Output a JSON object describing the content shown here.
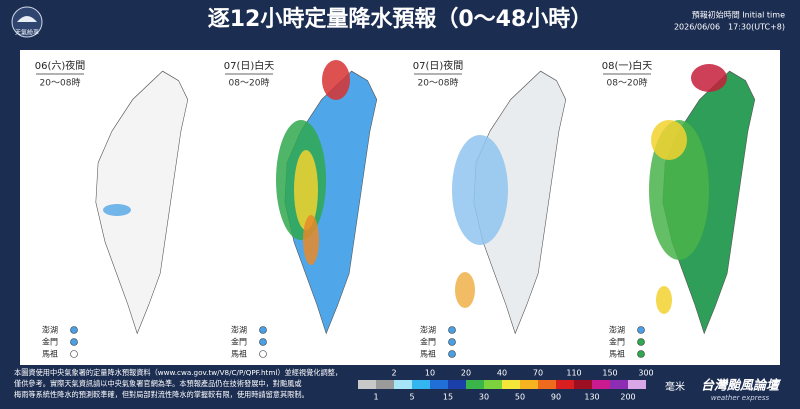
{
  "header": {
    "logo": "天氣紛享",
    "title": "逐12小時定量降水預報（0～48小時）",
    "init_label": "預報初始時間 Initial time",
    "init_time": "2026/06/06　17:30(UTC+8)"
  },
  "panels": [
    {
      "title": "06(六)夜間",
      "time": "20～08時",
      "islands": [
        "澎湖",
        "金門",
        "馬祖"
      ]
    },
    {
      "title": "07(日)白天",
      "time": "08～20時",
      "islands": [
        "澎湖",
        "金門",
        "馬祖"
      ]
    },
    {
      "title": "07(日)夜間",
      "time": "20～08時",
      "islands": [
        "澎湖",
        "金門",
        "馬祖"
      ]
    },
    {
      "title": "08(一)白天",
      "time": "08～20時",
      "islands": [
        "澎湖",
        "金門",
        "馬祖"
      ]
    }
  ],
  "footer": {
    "note": [
      "本圖資使用中央氣象署的定量降水預報資料（www.cwa.gov.tw/V8/C/P/QPF.html）並經視覺化調整，",
      "僅供參考。實際天氣資訊請以中央氣象署官網為準。本預報產品仍在技術發展中，對颱風或",
      "梅雨等系統性降水的預測較準確，但對局部對流性降水的掌握較有限，使用時請留意其限制。"
    ],
    "legend_top": [
      "2",
      "10",
      "20",
      "40",
      "70",
      "110",
      "150",
      "300"
    ],
    "legend_bottom": [
      "1",
      "5",
      "15",
      "30",
      "50",
      "90",
      "130",
      "200"
    ],
    "unit": "毫米",
    "brand": "台灣颱風論壇",
    "brand_sub": "weather express"
  }
}
